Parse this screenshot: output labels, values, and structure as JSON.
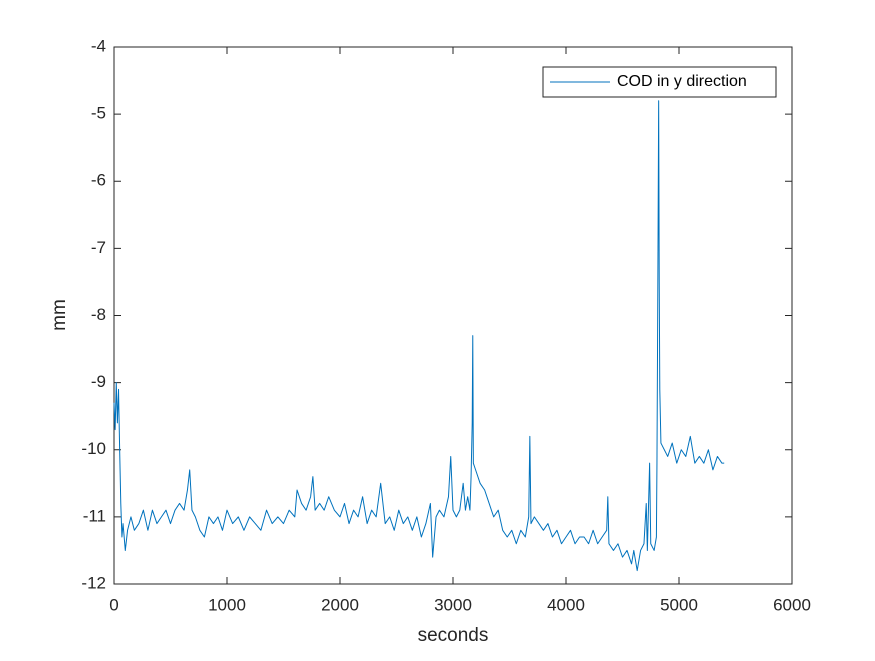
{
  "chart_data": {
    "type": "line",
    "xlabel": "seconds",
    "ylabel": "mm",
    "xlim": [
      0,
      6000
    ],
    "ylim": [
      -12,
      -4
    ],
    "xticks": [
      0,
      1000,
      2000,
      3000,
      4000,
      5000,
      6000
    ],
    "yticks": [
      -12,
      -11,
      -10,
      -9,
      -8,
      -7,
      -6,
      -5,
      -4
    ],
    "grid": false,
    "legend": "northeast",
    "x": [
      0,
      10,
      20,
      30,
      40,
      50,
      60,
      70,
      80,
      100,
      120,
      150,
      180,
      220,
      260,
      300,
      340,
      380,
      420,
      460,
      500,
      540,
      580,
      620,
      650,
      670,
      690,
      720,
      760,
      800,
      840,
      880,
      920,
      960,
      1000,
      1050,
      1100,
      1150,
      1200,
      1250,
      1300,
      1350,
      1400,
      1450,
      1500,
      1550,
      1600,
      1620,
      1660,
      1700,
      1740,
      1760,
      1780,
      1820,
      1860,
      1900,
      1950,
      2000,
      2040,
      2080,
      2120,
      2160,
      2200,
      2240,
      2280,
      2320,
      2360,
      2400,
      2440,
      2480,
      2520,
      2560,
      2600,
      2640,
      2680,
      2720,
      2760,
      2800,
      2820,
      2850,
      2880,
      2920,
      2960,
      2980,
      3000,
      3030,
      3060,
      3090,
      3110,
      3130,
      3150,
      3160,
      3170,
      3175,
      3180,
      3200,
      3240,
      3280,
      3320,
      3360,
      3400,
      3440,
      3480,
      3520,
      3560,
      3600,
      3640,
      3670,
      3680,
      3690,
      3720,
      3760,
      3800,
      3840,
      3880,
      3920,
      3960,
      4000,
      4040,
      4080,
      4120,
      4160,
      4200,
      4240,
      4280,
      4320,
      4360,
      4370,
      4380,
      4420,
      4460,
      4500,
      4540,
      4580,
      4600,
      4630,
      4660,
      4690,
      4710,
      4720,
      4740,
      4750,
      4780,
      4800,
      4805,
      4810,
      4815,
      4820,
      4825,
      4830,
      4840,
      4870,
      4900,
      4940,
      4980,
      5020,
      5060,
      5100,
      5140,
      5180,
      5220,
      5260,
      5300,
      5340,
      5380,
      5400
    ],
    "series": [
      {
        "name": "COD in y direction",
        "color": "#0072bd",
        "values": [
          -9.3,
          -9.7,
          -9.0,
          -9.6,
          -9.1,
          -10.0,
          -10.8,
          -11.3,
          -11.1,
          -11.5,
          -11.2,
          -11.0,
          -11.2,
          -11.1,
          -10.9,
          -11.2,
          -10.9,
          -11.1,
          -11.0,
          -10.9,
          -11.1,
          -10.9,
          -10.8,
          -10.9,
          -10.6,
          -10.3,
          -10.9,
          -11.0,
          -11.2,
          -11.3,
          -11.0,
          -11.1,
          -11.0,
          -11.2,
          -10.9,
          -11.1,
          -11.0,
          -11.2,
          -11.0,
          -11.1,
          -11.2,
          -10.9,
          -11.1,
          -11.0,
          -11.1,
          -10.9,
          -11.0,
          -10.6,
          -10.8,
          -10.9,
          -10.7,
          -10.4,
          -10.9,
          -10.8,
          -10.9,
          -10.7,
          -10.9,
          -11.0,
          -10.8,
          -11.1,
          -10.9,
          -11.0,
          -10.7,
          -11.1,
          -10.9,
          -11.0,
          -10.5,
          -11.1,
          -11.0,
          -11.2,
          -10.9,
          -11.1,
          -11.0,
          -11.2,
          -11.0,
          -11.3,
          -11.1,
          -10.8,
          -11.6,
          -11.0,
          -10.9,
          -11.0,
          -10.7,
          -10.1,
          -10.9,
          -11.0,
          -10.9,
          -10.5,
          -10.9,
          -10.7,
          -10.9,
          -10.4,
          -9.6,
          -8.3,
          -10.2,
          -10.3,
          -10.5,
          -10.6,
          -10.8,
          -11.0,
          -10.9,
          -11.2,
          -11.3,
          -11.2,
          -11.4,
          -11.2,
          -11.3,
          -11.0,
          -9.8,
          -11.1,
          -11.0,
          -11.1,
          -11.2,
          -11.1,
          -11.3,
          -11.2,
          -11.4,
          -11.3,
          -11.2,
          -11.4,
          -11.3,
          -11.3,
          -11.4,
          -11.2,
          -11.4,
          -11.3,
          -11.2,
          -10.7,
          -11.4,
          -11.5,
          -11.4,
          -11.6,
          -11.5,
          -11.7,
          -11.5,
          -11.8,
          -11.5,
          -11.4,
          -10.8,
          -11.5,
          -10.2,
          -11.4,
          -11.5,
          -11.3,
          -10.2,
          -8.5,
          -6.7,
          -4.8,
          -7.5,
          -9.1,
          -9.9,
          -10.0,
          -10.1,
          -9.9,
          -10.2,
          -10.0,
          -10.1,
          -9.8,
          -10.2,
          -10.1,
          -10.2,
          -10.0,
          -10.3,
          -10.1,
          -10.2,
          -10.2
        ]
      }
    ]
  }
}
